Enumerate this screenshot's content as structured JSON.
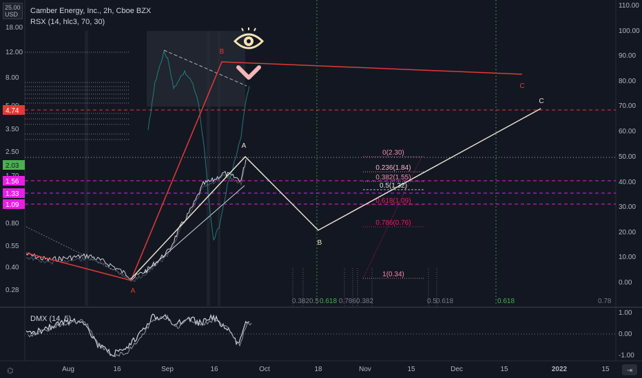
{
  "header": {
    "title": "Camber Energy, Inc., 2h, Cboe BZX",
    "indicator1": "RSX (14, hlc3, 70, 30)",
    "indicator2": "DMX (14, 5)",
    "currency_top": "USD",
    "currency_val": "25.00"
  },
  "colors": {
    "background": "#131722",
    "price": "#d1d4dc",
    "wave_abc": "#e8e3d0",
    "wave_red": "#e53935",
    "fib_pink": "#e91e63",
    "fib_text": "#f48fb1",
    "green_label": "#4caf50",
    "magenta_tag": "#e91ee3",
    "red_tag": "#e53935"
  },
  "chart_data": {
    "type": "line",
    "left_axis_ticks": [
      "18.00",
      "12.00",
      "8.00",
      "5.00",
      "3.50",
      "2.50",
      "1.70",
      "0.80",
      "0.55",
      "0.40",
      "0.28"
    ],
    "right_axis_ticks": [
      "110.00",
      "100.00",
      "90.00",
      "80.00",
      "70.00",
      "60.00",
      "50.00",
      "40.00",
      "30.00",
      "20.00",
      "10.00",
      "0.00"
    ],
    "dmx_axis_ticks": [
      "1.00",
      "0.00",
      "-1.00"
    ],
    "x_ticks": [
      "Aug",
      "16",
      "Sep",
      "16",
      "Oct",
      "18",
      "Nov",
      "15",
      "Dec",
      "15",
      "2022",
      "15"
    ],
    "price_tags": [
      {
        "value": "4.74",
        "color": "#e53935"
      },
      {
        "value": "2.03",
        "color": "#4caf50"
      },
      {
        "value": "1.56",
        "color": "#e91ee3"
      },
      {
        "value": "1.33",
        "color": "#e91ee3"
      },
      {
        "value": "1.09",
        "color": "#e91ee3"
      }
    ],
    "wave_labels": {
      "a_white": "A",
      "b_white": "B",
      "c_white": "C",
      "a_red": "A",
      "b_red": "B",
      "c_red": "C"
    },
    "fib_levels": [
      {
        "label": "0(2.30)"
      },
      {
        "label": "0.236(1.84)"
      },
      {
        "label": "0.382(1.55)"
      },
      {
        "label": "0.5(1.32)"
      },
      {
        "label": "0.618(1.09)"
      },
      {
        "label": "0.786(0.76)"
      },
      {
        "label": "1(0.34)"
      }
    ],
    "time_fib_labels": [
      "0.382",
      "0.5",
      "0.618",
      "0.786",
      "0.382",
      "0.5",
      "0.618",
      "0.618",
      "0.78"
    ]
  }
}
